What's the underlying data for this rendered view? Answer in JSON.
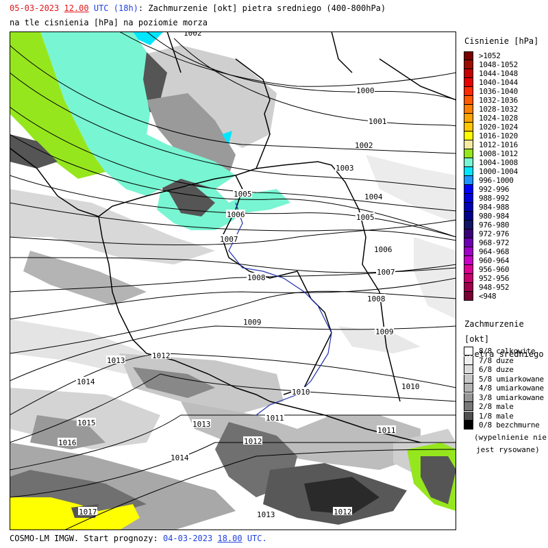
{
  "header": {
    "date": "05-03-2023",
    "time": "12.00",
    "utc": "UTC",
    "lead": "(18h)",
    "title_rest": ": Zachmurzenie [okt] pietra sredniego (400-800hPa)",
    "line2": "na tle cisnienia [hPa] na poziomie morza"
  },
  "footer": {
    "model": "COSMO-LM IMGW. Start prognozy:",
    "start_date": "04-03-2023",
    "start_time": "18.00",
    "utc": "UTC."
  },
  "pressure_legend": {
    "title": "Cisnienie [hPa]",
    "items": [
      {
        "label": ">1052",
        "color": "#7a0000"
      },
      {
        "label": "1048-1052",
        "color": "#9c0d00"
      },
      {
        "label": "1044-1048",
        "color": "#c40000"
      },
      {
        "label": "1040-1044",
        "color": "#e80000"
      },
      {
        "label": "1036-1040",
        "color": "#ff2a00"
      },
      {
        "label": "1032-1036",
        "color": "#ff5a00"
      },
      {
        "label": "1028-1032",
        "color": "#ff8000"
      },
      {
        "label": "1024-1028",
        "color": "#ffa500"
      },
      {
        "label": "1020-1024",
        "color": "#ffc800"
      },
      {
        "label": "1016-1020",
        "color": "#ffff00"
      },
      {
        "label": "1012-1016",
        "color": "#f5eaa0"
      },
      {
        "label": "1008-1012",
        "color": "#96e61e"
      },
      {
        "label": "1004-1008",
        "color": "#78f5d2"
      },
      {
        "label": "1000-1004",
        "color": "#00e6ff"
      },
      {
        "label": "996-1000",
        "color": "#1e96ff"
      },
      {
        "label": "992-996",
        "color": "#0000ff"
      },
      {
        "label": "988-992",
        "color": "#0000dc"
      },
      {
        "label": "984-988",
        "color": "#0000b4"
      },
      {
        "label": "980-984",
        "color": "#00008c"
      },
      {
        "label": "976-980",
        "color": "#141464"
      },
      {
        "label": "972-976",
        "color": "#3c0078"
      },
      {
        "label": "968-972",
        "color": "#6e00b4"
      },
      {
        "label": "964-968",
        "color": "#a000c8"
      },
      {
        "label": "960-964",
        "color": "#c800c8"
      },
      {
        "label": "956-960",
        "color": "#dc0096"
      },
      {
        "label": "952-956",
        "color": "#c8006e"
      },
      {
        "label": "948-952",
        "color": "#a0004b"
      },
      {
        "label": "<948",
        "color": "#780032"
      }
    ]
  },
  "cloud_legend": {
    "title_line1": "Zachmurzenie [okt]",
    "title_line2": "pietra sredniego",
    "items": [
      {
        "label": "8/8 calkowite",
        "color": "#ffffff"
      },
      {
        "label": "7/8 duze",
        "color": "#f0f0f0"
      },
      {
        "label": "6/8 duze",
        "color": "#dcdcdc"
      },
      {
        "label": "5/8 umiarkowane",
        "color": "#c8c8c8"
      },
      {
        "label": "4/8 umiarkowane",
        "color": "#b4b4b4"
      },
      {
        "label": "3/8 umiarkowane",
        "color": "#969696"
      },
      {
        "label": "2/8 male",
        "color": "#787878"
      },
      {
        "label": "1/8 male",
        "color": "#505050"
      },
      {
        "label": "0/8 bezchmurne",
        "color": "#000000"
      }
    ],
    "note_line1": "(wypelnienie nie",
    "note_line2": "jest rysowane)"
  },
  "isobar_labels": [
    "1002",
    "1000",
    "1001",
    "1002",
    "1003",
    "1004",
    "1005",
    "1005",
    "1006",
    "1006",
    "1007",
    "1007",
    "1008",
    "1008",
    "1009",
    "1009",
    "1010",
    "1010",
    "1011",
    "1011",
    "1012",
    "1012",
    "1012",
    "1013",
    "1013",
    "1013",
    "1014",
    "1014",
    "1015",
    "1016",
    "1017"
  ]
}
